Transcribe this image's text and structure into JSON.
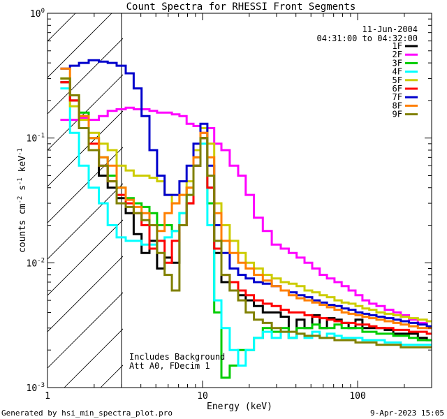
{
  "chart_data": {
    "type": "line",
    "title": "Count Spectra for RHESSI Front Segments",
    "xlabel": "Energy (keV)",
    "ylabel": "counts cm",
    "ylabel_sup1": "-2",
    "ylabel_mid": " s",
    "ylabel_sup2": "-1",
    "ylabel_end": " keV",
    "ylabel_sup3": "-1",
    "x_scale": "log",
    "y_scale": "log",
    "xlim": [
      1,
      300
    ],
    "ylim": [
      0.001,
      1
    ],
    "x_tick_labels": [
      {
        "value": 1,
        "text": "1"
      },
      {
        "value": 10,
        "text": "10"
      },
      {
        "value": 100,
        "text": "100"
      }
    ],
    "y_tick_labels": [
      {
        "value": 1,
        "base": "10",
        "exp": "0"
      },
      {
        "value": 0.1,
        "base": "10",
        "exp": "-1"
      },
      {
        "value": 0.01,
        "base": "10",
        "exp": "-2"
      },
      {
        "value": 0.001,
        "base": "10",
        "exp": "-3"
      }
    ],
    "hatched_region_below_keV": 3,
    "date": "11-Jun-2004",
    "time_range": "04:31:00 to 04:32:00",
    "annotations": [
      "Includes Background",
      "Att A0, FDecim 1"
    ],
    "series": [
      {
        "name": "1F",
        "color": "#000000",
        "x": [
          1.3,
          1.5,
          1.7,
          2.0,
          2.3,
          2.6,
          3.0,
          3.4,
          3.8,
          4.3,
          4.8,
          5.4,
          6.0,
          6.7,
          7.5,
          8.3,
          9.2,
          10.2,
          11.3,
          12.5,
          14,
          16,
          18,
          20,
          23,
          26,
          30,
          34,
          38,
          43,
          48,
          54,
          60,
          67,
          75,
          83,
          92,
          102,
          113,
          125,
          140,
          160,
          180,
          200,
          230,
          260,
          300
        ],
        "y": [
          0.28,
          0.2,
          0.15,
          0.08,
          0.05,
          0.04,
          0.033,
          0.025,
          0.017,
          0.012,
          0.015,
          0.009,
          0.011,
          0.01,
          0.02,
          0.03,
          0.06,
          0.1,
          0.04,
          0.012,
          0.007,
          0.006,
          0.0055,
          0.005,
          0.0045,
          0.004,
          0.004,
          0.0037,
          0.0025,
          0.0035,
          0.003,
          0.0038,
          0.003,
          0.0036,
          0.0035,
          0.0033,
          0.003,
          0.0035,
          0.003,
          0.003,
          0.003,
          0.0029,
          0.0027,
          0.0027,
          0.0027,
          0.0025,
          0.0024
        ]
      },
      {
        "name": "2F",
        "color": "#ff00ff",
        "x": [
          1.3,
          1.5,
          1.7,
          2.0,
          2.3,
          2.6,
          3.0,
          3.4,
          3.8,
          4.3,
          4.8,
          5.4,
          6.0,
          6.7,
          7.5,
          8.3,
          9.2,
          10.2,
          11.3,
          12.5,
          14,
          16,
          18,
          20,
          23,
          26,
          30,
          34,
          38,
          43,
          48,
          54,
          60,
          67,
          75,
          83,
          92,
          102,
          113,
          125,
          140,
          160,
          180,
          200,
          230,
          260,
          300
        ],
        "y": [
          0.14,
          0.14,
          0.145,
          0.14,
          0.15,
          0.165,
          0.17,
          0.175,
          0.17,
          0.17,
          0.165,
          0.16,
          0.16,
          0.155,
          0.15,
          0.13,
          0.125,
          0.11,
          0.12,
          0.09,
          0.08,
          0.06,
          0.05,
          0.035,
          0.023,
          0.018,
          0.014,
          0.013,
          0.012,
          0.011,
          0.01,
          0.009,
          0.008,
          0.0075,
          0.007,
          0.0065,
          0.006,
          0.0055,
          0.005,
          0.0047,
          0.0045,
          0.0042,
          0.004,
          0.0038,
          0.0035,
          0.0033,
          0.003
        ]
      },
      {
        "name": "3F",
        "color": "#00cc00",
        "x": [
          1.3,
          1.5,
          1.7,
          2.0,
          2.3,
          2.6,
          3.0,
          3.4,
          3.8,
          4.3,
          4.8,
          5.4,
          6.0,
          6.7,
          7.5,
          8.3,
          9.2,
          10.2,
          11.3,
          12.5,
          14,
          16,
          18,
          20,
          23,
          26,
          30,
          34,
          38,
          43,
          48,
          54,
          60,
          67,
          75,
          83,
          92,
          102,
          113,
          125,
          140,
          160,
          180,
          200,
          230,
          260,
          300
        ],
        "y": [
          0.3,
          0.22,
          0.16,
          0.1,
          0.07,
          0.05,
          0.04,
          0.033,
          0.03,
          0.028,
          0.025,
          0.02,
          0.02,
          0.018,
          0.025,
          0.04,
          0.07,
          0.12,
          0.03,
          0.004,
          0.0012,
          0.0015,
          0.002,
          0.002,
          0.0025,
          0.003,
          0.0028,
          0.003,
          0.0025,
          0.003,
          0.003,
          0.0032,
          0.003,
          0.003,
          0.0032,
          0.003,
          0.003,
          0.003,
          0.0028,
          0.0028,
          0.0027,
          0.0027,
          0.0026,
          0.0026,
          0.0025,
          0.0024,
          0.0024
        ]
      },
      {
        "name": "4F",
        "color": "#00ffff",
        "x": [
          1.3,
          1.5,
          1.7,
          2.0,
          2.3,
          2.6,
          3.0,
          3.4,
          3.8,
          4.3,
          4.8,
          5.4,
          6.0,
          6.7,
          7.5,
          8.3,
          9.2,
          10.2,
          11.3,
          12.5,
          14,
          16,
          18,
          20,
          23,
          26,
          30,
          34,
          38,
          43,
          48,
          54,
          60,
          67,
          75,
          83,
          92,
          102,
          113,
          125,
          140,
          160,
          180,
          200,
          230,
          260,
          300
        ],
        "y": [
          0.25,
          0.11,
          0.06,
          0.04,
          0.03,
          0.02,
          0.016,
          0.015,
          0.015,
          0.014,
          0.014,
          0.015,
          0.016,
          0.018,
          0.025,
          0.035,
          0.06,
          0.09,
          0.02,
          0.005,
          0.003,
          0.002,
          0.0015,
          0.002,
          0.0025,
          0.0028,
          0.0025,
          0.0028,
          0.0025,
          0.0027,
          0.0025,
          0.0028,
          0.0025,
          0.0027,
          0.0026,
          0.0025,
          0.0025,
          0.0025,
          0.0024,
          0.0024,
          0.0024,
          0.0023,
          0.0023,
          0.0022,
          0.0022,
          0.0022,
          0.0022
        ]
      },
      {
        "name": "5F",
        "color": "#cccc00",
        "x": [
          1.3,
          1.5,
          1.7,
          2.0,
          2.3,
          2.6,
          3.0,
          3.4,
          3.8,
          4.3,
          4.8,
          5.4,
          6.0,
          6.7,
          7.5,
          8.3,
          9.2,
          10.2,
          11.3,
          12.5,
          14,
          16,
          18,
          20,
          23,
          26,
          30,
          34,
          38,
          43,
          48,
          54,
          60,
          67,
          75,
          83,
          92,
          102,
          113,
          125,
          140,
          160,
          180,
          200,
          230,
          260,
          300
        ],
        "y": [
          0.3,
          0.18,
          0.14,
          0.11,
          0.09,
          0.08,
          0.06,
          0.055,
          0.05,
          0.05,
          0.048,
          0.045,
          0.035,
          0.03,
          0.035,
          0.045,
          0.08,
          0.12,
          0.09,
          0.03,
          0.02,
          0.015,
          0.012,
          0.01,
          0.009,
          0.008,
          0.0075,
          0.007,
          0.0068,
          0.0065,
          0.006,
          0.0058,
          0.0055,
          0.0053,
          0.005,
          0.0048,
          0.0047,
          0.0045,
          0.0043,
          0.0042,
          0.004,
          0.0039,
          0.0038,
          0.0037,
          0.0036,
          0.0035,
          0.0034
        ]
      },
      {
        "name": "6F",
        "color": "#ff0000",
        "x": [
          1.3,
          1.5,
          1.7,
          2.0,
          2.3,
          2.6,
          3.0,
          3.4,
          3.8,
          4.3,
          4.8,
          5.4,
          6.0,
          6.7,
          7.5,
          8.3,
          9.2,
          10.2,
          11.3,
          12.5,
          14,
          16,
          18,
          20,
          23,
          26,
          30,
          34,
          38,
          43,
          48,
          54,
          60,
          67,
          75,
          83,
          92,
          102,
          113,
          125,
          140,
          160,
          180,
          200,
          230,
          260,
          300
        ],
        "y": [
          0.28,
          0.2,
          0.15,
          0.09,
          0.06,
          0.045,
          0.035,
          0.03,
          0.025,
          0.02,
          0.013,
          0.015,
          0.01,
          0.015,
          0.02,
          0.03,
          0.06,
          0.1,
          0.04,
          0.013,
          0.008,
          0.007,
          0.006,
          0.0055,
          0.005,
          0.0047,
          0.0045,
          0.0042,
          0.004,
          0.004,
          0.0038,
          0.0037,
          0.0036,
          0.0035,
          0.0034,
          0.0033,
          0.0033,
          0.0032,
          0.0032,
          0.0031,
          0.003,
          0.003,
          0.0029,
          0.0029,
          0.0028,
          0.0028,
          0.0027
        ]
      },
      {
        "name": "7F",
        "color": "#0000cc",
        "x": [
          1.3,
          1.5,
          1.7,
          2.0,
          2.3,
          2.6,
          3.0,
          3.4,
          3.8,
          4.3,
          4.8,
          5.4,
          6.0,
          6.7,
          7.5,
          8.3,
          9.2,
          10.2,
          11.3,
          12.5,
          14,
          16,
          18,
          20,
          23,
          26,
          30,
          34,
          38,
          43,
          48,
          54,
          60,
          67,
          75,
          83,
          92,
          102,
          113,
          125,
          140,
          160,
          180,
          200,
          230,
          260,
          300
        ],
        "y": [
          0.36,
          0.38,
          0.4,
          0.42,
          0.41,
          0.4,
          0.38,
          0.33,
          0.25,
          0.15,
          0.08,
          0.05,
          0.035,
          0.035,
          0.045,
          0.06,
          0.09,
          0.13,
          0.06,
          0.02,
          0.012,
          0.009,
          0.008,
          0.0075,
          0.007,
          0.0068,
          0.0065,
          0.006,
          0.0058,
          0.0055,
          0.0053,
          0.005,
          0.0048,
          0.0046,
          0.0045,
          0.0043,
          0.0042,
          0.004,
          0.0039,
          0.0038,
          0.0037,
          0.0036,
          0.0035,
          0.0034,
          0.0033,
          0.0032,
          0.0031
        ]
      },
      {
        "name": "8F",
        "color": "#ff7f00",
        "x": [
          1.3,
          1.5,
          1.7,
          2.0,
          2.3,
          2.6,
          3.0,
          3.4,
          3.8,
          4.3,
          4.8,
          5.4,
          6.0,
          6.7,
          7.5,
          8.3,
          9.2,
          10.2,
          11.3,
          12.5,
          14,
          16,
          18,
          20,
          23,
          26,
          30,
          34,
          38,
          43,
          48,
          54,
          60,
          67,
          75,
          83,
          92,
          102,
          113,
          125,
          140,
          160,
          180,
          200,
          230,
          260,
          300
        ],
        "y": [
          0.36,
          0.22,
          0.15,
          0.1,
          0.07,
          0.06,
          0.04,
          0.032,
          0.028,
          0.025,
          0.02,
          0.018,
          0.025,
          0.03,
          0.035,
          0.04,
          0.07,
          0.11,
          0.07,
          0.025,
          0.015,
          0.012,
          0.01,
          0.009,
          0.008,
          0.0072,
          0.0065,
          0.006,
          0.0055,
          0.0052,
          0.005,
          0.0048,
          0.0046,
          0.0044,
          0.0042,
          0.004,
          0.0039,
          0.0038,
          0.0037,
          0.0036,
          0.0035,
          0.0034,
          0.0033,
          0.0032,
          0.0031,
          0.003,
          0.003
        ]
      },
      {
        "name": "9F",
        "color": "#808000",
        "x": [
          1.3,
          1.5,
          1.7,
          2.0,
          2.3,
          2.6,
          3.0,
          3.4,
          3.8,
          4.3,
          4.8,
          5.4,
          6.0,
          6.7,
          7.5,
          8.3,
          9.2,
          10.2,
          11.3,
          12.5,
          14,
          16,
          18,
          20,
          23,
          26,
          30,
          34,
          38,
          43,
          48,
          54,
          60,
          67,
          75,
          83,
          92,
          102,
          113,
          125,
          140,
          160,
          180,
          200,
          230,
          260,
          300
        ],
        "y": [
          0.3,
          0.22,
          0.12,
          0.08,
          0.06,
          0.045,
          0.03,
          0.028,
          0.025,
          0.022,
          0.02,
          0.012,
          0.008,
          0.006,
          0.02,
          0.035,
          0.06,
          0.1,
          0.05,
          0.015,
          0.008,
          0.006,
          0.005,
          0.004,
          0.0035,
          0.0033,
          0.003,
          0.0028,
          0.0028,
          0.0027,
          0.0026,
          0.0026,
          0.0025,
          0.0025,
          0.0024,
          0.0024,
          0.0024,
          0.0023,
          0.0023,
          0.0023,
          0.0022,
          0.0022,
          0.0022,
          0.0021,
          0.0021,
          0.0021,
          0.0021
        ]
      }
    ]
  },
  "footer": {
    "generated_by": "Generated by hsi_min_spectra_plot.pro",
    "timestamp": "9-Apr-2023 15:05"
  }
}
